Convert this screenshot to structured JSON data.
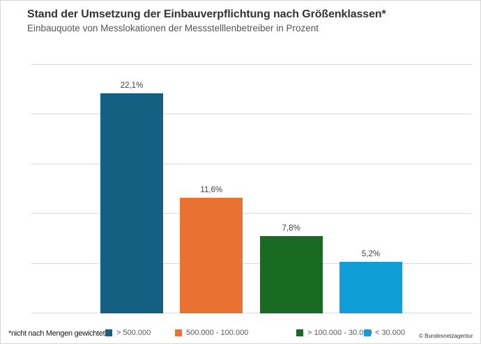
{
  "header": {
    "title": "Stand der Umsetzung der Einbauverpflichtung nach Größenklassen*",
    "subtitle": "Einbauquote von Messlokationen der Messstelllenbetreiber in Prozent"
  },
  "footer": {
    "footnote": "*nicht nach Mengen gewichtet",
    "copyright": "© Bundesnetzagentur"
  },
  "chart_data": {
    "type": "bar",
    "title": "Stand der Umsetzung der Einbauverpflichtung nach Größenklassen*",
    "subtitle": "Einbauquote von Messlokationen der Messstelllenbetreiber in Prozent",
    "categories": [
      "> 500.000",
      "500.000 - 100.000",
      "> 100.000 - 30.000",
      "< 30.000"
    ],
    "values": [
      22.1,
      11.6,
      7.8,
      5.2
    ],
    "value_labels": [
      "22,1%",
      "11,6%",
      "7,8%",
      "5,2%"
    ],
    "colors": [
      "#156082",
      "#E97132",
      "#196B24",
      "#0F9ED5"
    ],
    "xlabel": "",
    "ylabel": "",
    "ylim": [
      0,
      25
    ],
    "grid_step": 5,
    "grid": "horizontal",
    "legend_position": "bottom",
    "legend": [
      "> 500.000",
      "500.000 - 100.000",
      "> 100.000 - 30.000",
      "< 30.000"
    ]
  }
}
